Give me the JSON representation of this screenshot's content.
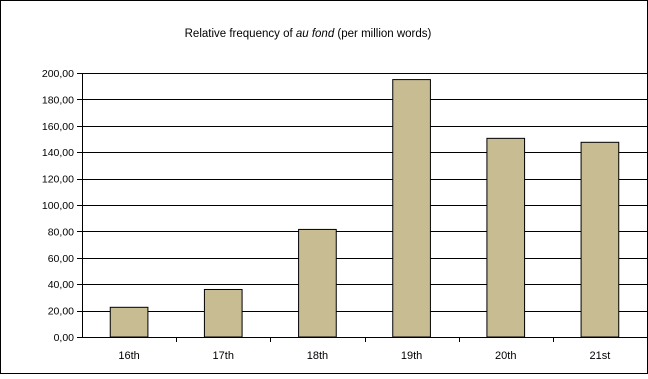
{
  "chart_data": {
    "type": "bar",
    "title": {
      "prefix": "Relative frequency of ",
      "emphasis": "au fond",
      "suffix": " (per million words)"
    },
    "categories": [
      "16th",
      "17th",
      "18th",
      "19th",
      "20th",
      "21st"
    ],
    "values": [
      22.5,
      36.0,
      81.5,
      195.0,
      150.5,
      147.5
    ],
    "ylim": [
      0,
      200
    ],
    "y_step": 20,
    "y_tick_labels": [
      "0,00",
      "20,00",
      "40,00",
      "60,00",
      "80,00",
      "100,00",
      "120,00",
      "140,00",
      "160,00",
      "180,00",
      "200,00"
    ],
    "xlabel": "",
    "ylabel": "",
    "grid": true,
    "legend": "none",
    "colors": {
      "bar_fill": "#C8BC93",
      "bar_stroke": "#000000",
      "grid": "#000000",
      "axis": "#000000",
      "frame": "#000000"
    }
  }
}
